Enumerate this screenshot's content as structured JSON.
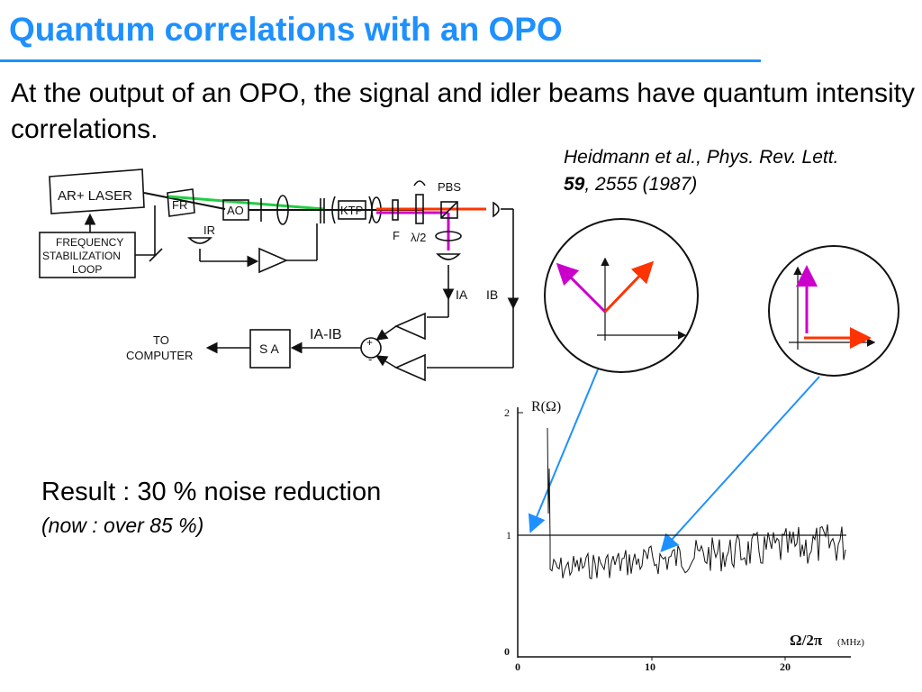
{
  "slide": {
    "title": "Quantum correlations with an OPO",
    "intro": "At the output of an OPO, the signal and idler beams have quantum intensity correlations.",
    "reference": {
      "authors": "Heidmann et al., Phys. Rev. Lett.",
      "volume": "59",
      "pages_year": ", 2555 (1987)"
    },
    "result": "Result : 30 % noise reduction",
    "result_note": "(now : over 85 %)"
  },
  "setup": {
    "laser": "AR+ LASER",
    "freq_line1": "FREQUENCY",
    "freq_line2": "STABILIZATION",
    "freq_line3": "LOOP",
    "fr": "FR",
    "ao": "AO",
    "ktp": "KTP",
    "ir": "IR",
    "pbs": "PBS",
    "f": "F",
    "lambda2": "λ/2",
    "ia": "IA",
    "ib": "IB",
    "ia_minus_ib": "IA-IB",
    "sa": "S A",
    "to": "TO",
    "computer": "COMPUTER",
    "plus": "+",
    "minus": "-"
  },
  "plot": {
    "ylabel": "R(Ω)",
    "xlabel": "Ω/2π",
    "xunit": "(MHz)",
    "y_ticks": [
      "0",
      "1",
      "2"
    ],
    "x_ticks": [
      "0",
      "10",
      "20"
    ],
    "colors": {
      "signal": "#cc00cc",
      "idler": "#ff3300",
      "pump": "#22cc44",
      "arrow": "#1e90ff"
    }
  }
}
